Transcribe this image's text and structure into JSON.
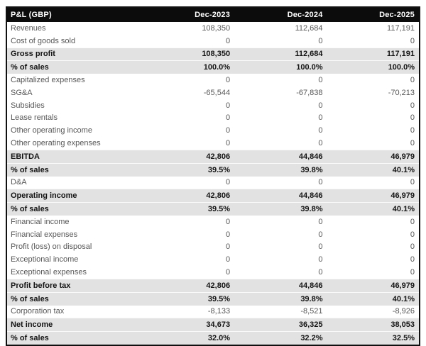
{
  "colors": {
    "header_bg": "#0c0c0c",
    "header_text": "#ffffff",
    "row_text": "#575757",
    "emphasis_bg": "#e2e2e2",
    "emphasis_text": "#141414",
    "table_border": "#101010"
  },
  "chart_data": {
    "type": "table",
    "title": "P&L (GBP)",
    "columns": [
      "Dec-2023",
      "Dec-2024",
      "Dec-2025"
    ],
    "rows": [
      {
        "label": "Revenues",
        "values": [
          "108,350",
          "112,684",
          "117,191"
        ],
        "emphasis": false
      },
      {
        "label": "Cost of goods sold",
        "values": [
          "0",
          "0",
          "0"
        ],
        "emphasis": false
      },
      {
        "label": "Gross profit",
        "values": [
          "108,350",
          "112,684",
          "117,191"
        ],
        "emphasis": true
      },
      {
        "label": "% of sales",
        "values": [
          "100.0%",
          "100.0%",
          "100.0%"
        ],
        "emphasis": true
      },
      {
        "label": "Capitalized expenses",
        "values": [
          "0",
          "0",
          "0"
        ],
        "emphasis": false
      },
      {
        "label": "SG&A",
        "values": [
          "-65,544",
          "-67,838",
          "-70,213"
        ],
        "emphasis": false
      },
      {
        "label": "Subsidies",
        "values": [
          "0",
          "0",
          "0"
        ],
        "emphasis": false
      },
      {
        "label": "Lease rentals",
        "values": [
          "0",
          "0",
          "0"
        ],
        "emphasis": false
      },
      {
        "label": "Other operating income",
        "values": [
          "0",
          "0",
          "0"
        ],
        "emphasis": false
      },
      {
        "label": "Other operating expenses",
        "values": [
          "0",
          "0",
          "0"
        ],
        "emphasis": false
      },
      {
        "label": "EBITDA",
        "values": [
          "42,806",
          "44,846",
          "46,979"
        ],
        "emphasis": true
      },
      {
        "label": "% of sales",
        "values": [
          "39.5%",
          "39.8%",
          "40.1%"
        ],
        "emphasis": true
      },
      {
        "label": "D&A",
        "values": [
          "0",
          "0",
          "0"
        ],
        "emphasis": false
      },
      {
        "label": "Operating income",
        "values": [
          "42,806",
          "44,846",
          "46,979"
        ],
        "emphasis": true
      },
      {
        "label": "% of sales",
        "values": [
          "39.5%",
          "39.8%",
          "40.1%"
        ],
        "emphasis": true
      },
      {
        "label": "Financial income",
        "values": [
          "0",
          "0",
          "0"
        ],
        "emphasis": false
      },
      {
        "label": "Financial expenses",
        "values": [
          "0",
          "0",
          "0"
        ],
        "emphasis": false
      },
      {
        "label": "Profit (loss) on disposal",
        "values": [
          "0",
          "0",
          "0"
        ],
        "emphasis": false
      },
      {
        "label": "Exceptional income",
        "values": [
          "0",
          "0",
          "0"
        ],
        "emphasis": false
      },
      {
        "label": "Exceptional expenses",
        "values": [
          "0",
          "0",
          "0"
        ],
        "emphasis": false
      },
      {
        "label": "Profit before tax",
        "values": [
          "42,806",
          "44,846",
          "46,979"
        ],
        "emphasis": true
      },
      {
        "label": "% of sales",
        "values": [
          "39.5%",
          "39.8%",
          "40.1%"
        ],
        "emphasis": true
      },
      {
        "label": "Corporation tax",
        "values": [
          "-8,133",
          "-8,521",
          "-8,926"
        ],
        "emphasis": false
      },
      {
        "label": "Net income",
        "values": [
          "34,673",
          "36,325",
          "38,053"
        ],
        "emphasis": true
      },
      {
        "label": "% of sales",
        "values": [
          "32.0%",
          "32.2%",
          "32.5%"
        ],
        "emphasis": true
      }
    ]
  }
}
